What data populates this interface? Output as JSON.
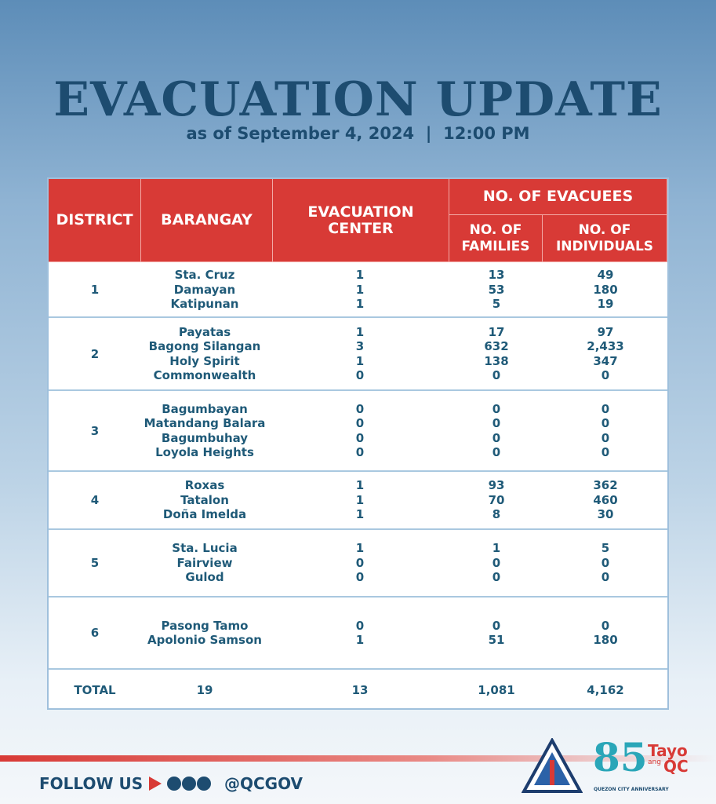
{
  "header": {
    "title": "EVACUATION UPDATE",
    "subtitle_date": "as of September 4, 2024",
    "subtitle_time": "12:00 PM"
  },
  "table": {
    "headers": {
      "district": "DISTRICT",
      "barangay": "BARANGAY",
      "center": "EVACUATION CENTER",
      "evacuees": "NO. OF EVACUEES",
      "families": "NO. OF FAMILIES",
      "individuals": "NO. OF INDIVIDUALS"
    },
    "groups": [
      {
        "district": "1",
        "rows": [
          [
            "Sta. Cruz",
            "1",
            "13",
            "49"
          ],
          [
            "Damayan",
            "1",
            "53",
            "180"
          ],
          [
            "Katipunan",
            "1",
            "5",
            "19"
          ]
        ]
      },
      {
        "district": "2",
        "rows": [
          [
            "Payatas",
            "1",
            "17",
            "97"
          ],
          [
            "Bagong Silangan",
            "3",
            "632",
            "2,433"
          ],
          [
            "Holy Spirit",
            "1",
            "138",
            "347"
          ],
          [
            "Commonwealth",
            "0",
            "0",
            "0"
          ]
        ]
      },
      {
        "district": "3",
        "rows": [
          [
            "Bagumbayan",
            "0",
            "0",
            "0"
          ],
          [
            "Matandang Balara",
            "0",
            "0",
            "0"
          ],
          [
            "Bagumbuhay",
            "0",
            "0",
            "0"
          ],
          [
            "Loyola Heights",
            "0",
            "0",
            "0"
          ]
        ]
      },
      {
        "district": "4",
        "rows": [
          [
            "Roxas",
            "1",
            "93",
            "362"
          ],
          [
            "Tatalon",
            "1",
            "70",
            "460"
          ],
          [
            "Doña Imelda",
            "1",
            "8",
            "30"
          ]
        ]
      },
      {
        "district": "5",
        "rows": [
          [
            "Sta. Lucia",
            "1",
            "1",
            "5"
          ],
          [
            "Fairview",
            "0",
            "0",
            "0"
          ],
          [
            "Gulod",
            "0",
            "0",
            "0"
          ]
        ]
      },
      {
        "district": "6",
        "rows": [
          [
            "Pasong Tamo",
            "0",
            "0",
            "0"
          ],
          [
            "Apolonio Samson",
            "1",
            "51",
            "180"
          ]
        ]
      }
    ],
    "total": [
      "TOTAL",
      "19",
      "13",
      "1,081",
      "4,162"
    ]
  },
  "footer": {
    "follow": "FOLLOW US",
    "handle": "@QCGOV",
    "logo_main": "Tayo",
    "logo_small": "ang",
    "logo_qc": "QC",
    "logo_caption": "QUEZON CITY ANNIVERSARY"
  }
}
